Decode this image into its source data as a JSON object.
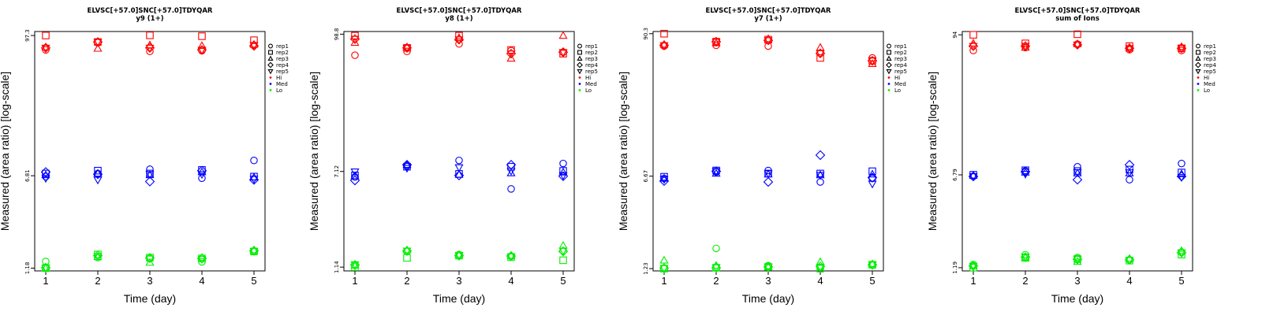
{
  "chart_data": [
    {
      "type": "scatter",
      "title": "ELVSC[+57.0]SNC[+57.0]TDYQAR",
      "subtitle": "y9 (1+)",
      "xlabel": "Time (day)",
      "ylabel": "Measured (area ratio) [log-scale]",
      "x_ticks": [
        "1",
        "2",
        "3",
        "4",
        "5"
      ],
      "y_ticks": [
        "1.18",
        "6.81",
        "97.3"
      ],
      "y_tick_values": [
        1.18,
        6.81,
        97.3
      ],
      "ylim": [
        1.12,
        105
      ],
      "y_scale": "log",
      "legend": {
        "position": "right",
        "reps": [
          "rep1",
          "rep2",
          "rep3",
          "rep4",
          "rep5"
        ],
        "groups": [
          "Hi",
          "Med",
          "Lo"
        ]
      },
      "colors": {
        "Hi": "#ff0000",
        "Med": "#0000ff",
        "Lo": "#00ee00"
      },
      "series": [
        {
          "group": "Hi",
          "rep": "rep1",
          "values": [
            74,
            85,
            72,
            73,
            81
          ]
        },
        {
          "group": "Hi",
          "rep": "rep2",
          "values": [
            97.3,
            86,
            97.6,
            96,
            89
          ]
        },
        {
          "group": "Hi",
          "rep": "rep3",
          "values": [
            78,
            76,
            81,
            80,
            82
          ]
        },
        {
          "group": "Hi",
          "rep": "rep4",
          "values": [
            77,
            86,
            77,
            74,
            80
          ]
        },
        {
          "group": "Hi",
          "rep": "rep5",
          "values": [
            77,
            86,
            77,
            74,
            81
          ]
        },
        {
          "group": "Med",
          "rep": "rep1",
          "values": [
            6.7,
            7.1,
            7.7,
            6.5,
            9.1
          ]
        },
        {
          "group": "Med",
          "rep": "rep2",
          "values": [
            7.1,
            7.5,
            7.1,
            7.6,
            6.7
          ]
        },
        {
          "group": "Med",
          "rep": "rep3",
          "values": [
            6.9,
            7.1,
            6.9,
            7.3,
            6.6
          ]
        },
        {
          "group": "Med",
          "rep": "rep4",
          "values": [
            7.3,
            7.0,
            6.1,
            7.5,
            6.3
          ]
        },
        {
          "group": "Med",
          "rep": "rep5",
          "values": [
            6.5,
            6.3,
            7.0,
            7.0,
            6.4
          ]
        },
        {
          "group": "Lo",
          "rep": "rep1",
          "values": [
            1.34,
            1.44,
            1.42,
            1.33,
            1.62
          ]
        },
        {
          "group": "Lo",
          "rep": "rep2",
          "values": [
            1.18,
            1.53,
            1.44,
            1.42,
            1.62
          ]
        },
        {
          "group": "Lo",
          "rep": "rep3",
          "values": [
            1.18,
            1.46,
            1.31,
            1.44,
            1.66
          ]
        },
        {
          "group": "Lo",
          "rep": "rep4",
          "values": [
            1.19,
            1.5,
            1.43,
            1.42,
            1.64
          ]
        },
        {
          "group": "Lo",
          "rep": "rep5",
          "values": [
            1.19,
            1.48,
            1.41,
            1.4,
            1.63
          ]
        }
      ]
    },
    {
      "type": "scatter",
      "title": "ELVSC[+57.0]SNC[+57.0]TDYQAR",
      "subtitle": "y8 (1+)",
      "xlabel": "Time (day)",
      "ylabel": "Measured (area ratio) [log-scale]",
      "x_ticks": [
        "1",
        "2",
        "3",
        "4",
        "5"
      ],
      "y_ticks": [
        "1.14",
        "7.12",
        "98.8"
      ],
      "y_tick_values": [
        1.14,
        7.12,
        98.8
      ],
      "ylim": [
        1.06,
        104
      ],
      "y_scale": "log",
      "legend": {
        "position": "right",
        "reps": [
          "rep1",
          "rep2",
          "rep3",
          "rep4",
          "rep5"
        ],
        "groups": [
          "Hi",
          "Med",
          "Lo"
        ]
      },
      "colors": {
        "Hi": "#ff0000",
        "Med": "#0000ff",
        "Lo": "#00ee00"
      },
      "series": [
        {
          "group": "Hi",
          "rep": "rep1",
          "values": [
            66,
            71,
            82,
            72,
            70
          ]
        },
        {
          "group": "Hi",
          "rep": "rep2",
          "values": [
            96,
            76,
            96,
            73,
            68
          ]
        },
        {
          "group": "Hi",
          "rep": "rep3",
          "values": [
            84,
            77,
            92,
            62,
            96
          ]
        },
        {
          "group": "Hi",
          "rep": "rep4",
          "values": [
            90,
            76,
            89,
            68,
            70
          ]
        },
        {
          "group": "Hi",
          "rep": "rep5",
          "values": [
            90,
            76,
            89,
            68,
            70
          ]
        },
        {
          "group": "Med",
          "rep": "rep1",
          "values": [
            6.4,
            7.9,
            8.8,
            5.1,
            8.3
          ]
        },
        {
          "group": "Med",
          "rep": "rep2",
          "values": [
            6.6,
            7.8,
            6.8,
            7.8,
            7.2
          ]
        },
        {
          "group": "Med",
          "rep": "rep3",
          "values": [
            6.5,
            8.1,
            6.7,
            6.9,
            7.0
          ]
        },
        {
          "group": "Med",
          "rep": "rep4",
          "values": [
            6.0,
            8.1,
            6.6,
            8.1,
            6.5
          ]
        },
        {
          "group": "Med",
          "rep": "rep5",
          "values": [
            7.1,
            7.6,
            7.7,
            7.2,
            6.6
          ]
        },
        {
          "group": "Lo",
          "rep": "rep1",
          "values": [
            1.18,
            1.54,
            1.45,
            1.4,
            1.55
          ]
        },
        {
          "group": "Lo",
          "rep": "rep2",
          "values": [
            1.14,
            1.36,
            1.42,
            1.38,
            1.3
          ]
        },
        {
          "group": "Lo",
          "rep": "rep3",
          "values": [
            1.18,
            1.58,
            1.44,
            1.42,
            1.72
          ]
        },
        {
          "group": "Lo",
          "rep": "rep4",
          "values": [
            1.19,
            1.55,
            1.42,
            1.41,
            1.54
          ]
        },
        {
          "group": "Lo",
          "rep": "rep5",
          "values": [
            1.2,
            1.56,
            1.43,
            1.4,
            1.56
          ]
        }
      ]
    },
    {
      "type": "scatter",
      "title": "ELVSC[+57.0]SNC[+57.0]TDYQAR",
      "subtitle": "y7 (1+)",
      "xlabel": "Time (day)",
      "ylabel": "Measured (area ratio) [log-scale]",
      "x_ticks": [
        "1",
        "2",
        "3",
        "4",
        "5"
      ],
      "y_ticks": [
        "1.23",
        "6.67",
        "90.3"
      ],
      "y_tick_values": [
        1.23,
        6.67,
        90.3
      ],
      "ylim": [
        1.18,
        94
      ],
      "y_scale": "log",
      "legend": {
        "position": "right",
        "reps": [
          "rep1",
          "rep2",
          "rep3",
          "rep4",
          "rep5"
        ],
        "groups": [
          "Hi",
          "Med",
          "Lo"
        ]
      },
      "colors": {
        "Hi": "#ff0000",
        "Med": "#0000ff",
        "Lo": "#00ee00"
      },
      "series": [
        {
          "group": "Hi",
          "rep": "rep1",
          "values": [
            72,
            73,
            72,
            63,
            58
          ]
        },
        {
          "group": "Hi",
          "rep": "rep2",
          "values": [
            90.3,
            78,
            81,
            58,
            55
          ]
        },
        {
          "group": "Hi",
          "rep": "rep3",
          "values": [
            74,
            76,
            82,
            70,
            52
          ]
        },
        {
          "group": "Hi",
          "rep": "rep4",
          "values": [
            73,
            78,
            80,
            63,
            55
          ]
        },
        {
          "group": "Hi",
          "rep": "rep5",
          "values": [
            73,
            78,
            80,
            63,
            55
          ]
        },
        {
          "group": "Med",
          "rep": "rep1",
          "values": [
            6.4,
            7.2,
            7.4,
            6.0,
            6.4
          ]
        },
        {
          "group": "Med",
          "rep": "rep2",
          "values": [
            6.6,
            7.4,
            7.0,
            7.0,
            7.3
          ]
        },
        {
          "group": "Med",
          "rep": "rep3",
          "values": [
            6.4,
            7.0,
            6.9,
            6.8,
            6.9
          ]
        },
        {
          "group": "Med",
          "rep": "rep4",
          "values": [
            6.1,
            7.3,
            6.0,
            9.8,
            6.5
          ]
        },
        {
          "group": "Med",
          "rep": "rep5",
          "values": [
            6.3,
            7.3,
            7.0,
            6.8,
            5.8
          ]
        },
        {
          "group": "Lo",
          "rep": "rep1",
          "values": [
            1.23,
            1.78,
            1.3,
            1.26,
            1.32
          ]
        },
        {
          "group": "Lo",
          "rep": "rep2",
          "values": [
            1.23,
            1.25,
            1.27,
            1.23,
            1.32
          ]
        },
        {
          "group": "Lo",
          "rep": "rep3",
          "values": [
            1.43,
            1.3,
            1.27,
            1.39,
            1.34
          ]
        },
        {
          "group": "Lo",
          "rep": "rep4",
          "values": [
            1.24,
            1.25,
            1.27,
            1.28,
            1.32
          ]
        },
        {
          "group": "Lo",
          "rep": "rep5",
          "values": [
            1.24,
            1.26,
            1.26,
            1.27,
            1.32
          ]
        }
      ]
    },
    {
      "type": "scatter",
      "title": "ELVSC[+57.0]SNC[+57.0]TDYQAR",
      "subtitle": "sum of Ions",
      "xlabel": "Time (day)",
      "ylabel": "Measured (area ratio) [log-scale]",
      "x_ticks": [
        "1",
        "2",
        "3",
        "4",
        "5"
      ],
      "y_ticks": [
        "1.19",
        "6.79",
        "94"
      ],
      "y_tick_values": [
        1.19,
        6.79,
        94
      ],
      "ylim": [
        1.12,
        100
      ],
      "y_scale": "log",
      "legend": {
        "position": "right",
        "reps": [
          "rep1",
          "rep2",
          "rep3",
          "rep4",
          "rep5"
        ],
        "groups": [
          "Hi",
          "Med",
          "Lo"
        ]
      },
      "colors": {
        "Hi": "#ff0000",
        "Med": "#0000ff",
        "Lo": "#00ee00"
      },
      "series": [
        {
          "group": "Hi",
          "rep": "rep1",
          "values": [
            70,
            74,
            79,
            71,
            70
          ]
        },
        {
          "group": "Hi",
          "rep": "rep2",
          "values": [
            94,
            80,
            95,
            76,
            73
          ]
        },
        {
          "group": "Hi",
          "rep": "rep3",
          "values": [
            80,
            74,
            79,
            73,
            75
          ]
        },
        {
          "group": "Hi",
          "rep": "rep4",
          "values": [
            76,
            76,
            78,
            73,
            73
          ]
        },
        {
          "group": "Hi",
          "rep": "rep5",
          "values": [
            76,
            76,
            78,
            73,
            73
          ]
        },
        {
          "group": "Med",
          "rep": "rep1",
          "values": [
            6.6,
            7.3,
            7.9,
            6.2,
            8.4
          ]
        },
        {
          "group": "Med",
          "rep": "rep2",
          "values": [
            6.8,
            7.4,
            7.3,
            7.5,
            7.1
          ]
        },
        {
          "group": "Med",
          "rep": "rep3",
          "values": [
            6.7,
            7.1,
            7.0,
            7.0,
            6.9
          ]
        },
        {
          "group": "Med",
          "rep": "rep4",
          "values": [
            6.6,
            7.2,
            6.2,
            8.2,
            6.6
          ]
        },
        {
          "group": "Med",
          "rep": "rep5",
          "values": [
            6.6,
            6.9,
            7.1,
            7.1,
            6.5
          ]
        },
        {
          "group": "Lo",
          "rep": "rep1",
          "values": [
            1.26,
            1.52,
            1.44,
            1.38,
            1.59
          ]
        },
        {
          "group": "Lo",
          "rep": "rep2",
          "values": [
            1.19,
            1.43,
            1.4,
            1.36,
            1.52
          ]
        },
        {
          "group": "Lo",
          "rep": "rep3",
          "values": [
            1.23,
            1.44,
            1.33,
            1.41,
            1.63
          ]
        },
        {
          "group": "Lo",
          "rep": "rep4",
          "values": [
            1.23,
            1.45,
            1.39,
            1.38,
            1.58
          ]
        },
        {
          "group": "Lo",
          "rep": "rep5",
          "values": [
            1.23,
            1.46,
            1.4,
            1.37,
            1.58
          ]
        }
      ]
    }
  ]
}
